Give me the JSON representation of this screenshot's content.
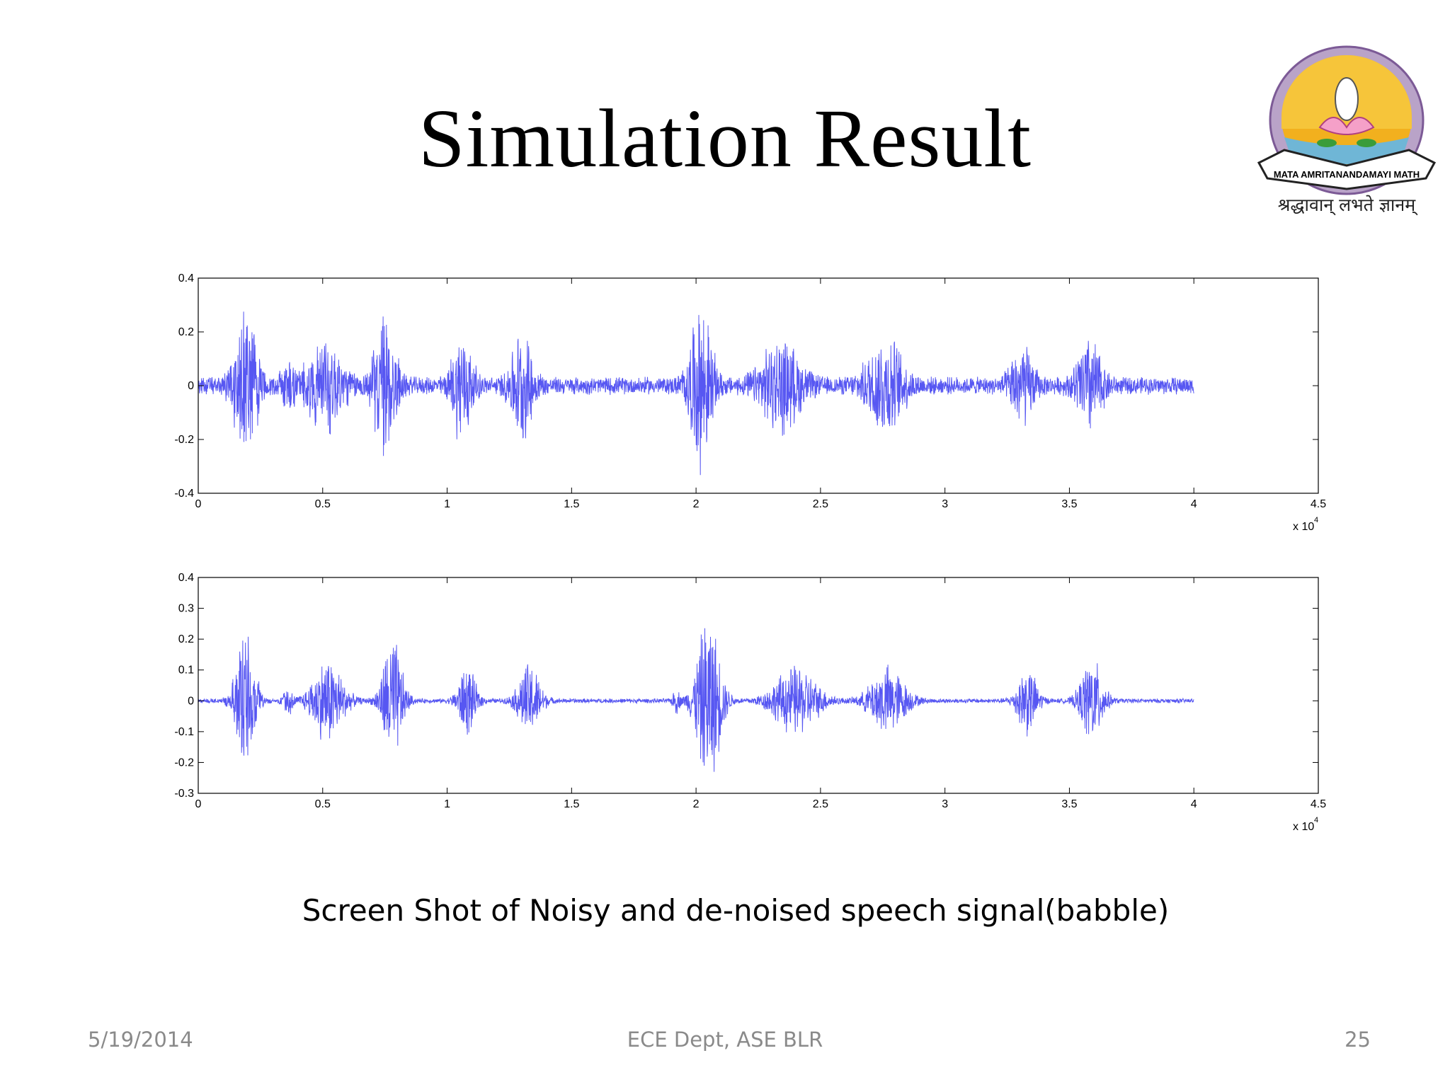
{
  "slide": {
    "title": "Simulation Result",
    "caption": "Screen Shot of Noisy and de-noised speech signal(babble)",
    "footer_left": "5/19/2014",
    "footer_center": "ECE Dept, ASE BLR",
    "footer_right": "25"
  },
  "logo": {
    "banner_text": "MATA AMRITANANDAMAYI MATH",
    "motto": "श्रद्धावान् लभते ज्ञानम्"
  },
  "colors": {
    "signal": "#3a3af0",
    "axis": "#000000",
    "footer": "#8a8a8a"
  },
  "chart_data": [
    {
      "type": "line",
      "title": "",
      "xlabel": "",
      "ylabel": "",
      "x_multiplier_label": "x 10",
      "x_multiplier_exponent": "4",
      "xlim": [
        0,
        45000
      ],
      "ylim": [
        -0.4,
        0.4
      ],
      "xticks": [
        0,
        0.5,
        1,
        1.5,
        2,
        2.5,
        3,
        3.5,
        4,
        4.5
      ],
      "yticks": [
        0.4,
        0.2,
        0,
        -0.2,
        -0.4
      ],
      "grid": false,
      "series": [
        {
          "x_end": 40000,
          "noise_floor": 0.035,
          "envelope": [
            {
              "center": 1900,
              "width": 500,
              "amp": 0.33
            },
            {
              "center": 3600,
              "width": 300,
              "amp": 0.1
            },
            {
              "center": 5100,
              "width": 800,
              "amp": 0.18
            },
            {
              "center": 7500,
              "width": 500,
              "amp": 0.27
            },
            {
              "center": 10600,
              "width": 450,
              "amp": 0.21
            },
            {
              "center": 13000,
              "width": 500,
              "amp": 0.2
            },
            {
              "center": 20200,
              "width": 500,
              "amp": 0.31
            },
            {
              "center": 23400,
              "width": 900,
              "amp": 0.17
            },
            {
              "center": 27600,
              "width": 800,
              "amp": 0.19
            },
            {
              "center": 33100,
              "width": 500,
              "amp": 0.15
            },
            {
              "center": 35800,
              "width": 550,
              "amp": 0.18
            }
          ]
        }
      ]
    },
    {
      "type": "line",
      "title": "",
      "xlabel": "",
      "ylabel": "",
      "x_multiplier_label": "x 10",
      "x_multiplier_exponent": "4",
      "xlim": [
        0,
        45000
      ],
      "ylim": [
        -0.3,
        0.4
      ],
      "xticks": [
        0,
        0.5,
        1,
        1.5,
        2,
        2.5,
        3,
        3.5,
        4,
        4.5
      ],
      "yticks": [
        0.4,
        0.3,
        0.2,
        0.1,
        0,
        -0.1,
        -0.2,
        -0.3
      ],
      "grid": false,
      "series": [
        {
          "x_end": 40000,
          "noise_floor": 0.008,
          "envelope": [
            {
              "center": 1900,
              "width": 450,
              "amp": 0.25
            },
            {
              "center": 3600,
              "width": 200,
              "amp": 0.05
            },
            {
              "center": 5200,
              "width": 700,
              "amp": 0.15
            },
            {
              "center": 7800,
              "width": 450,
              "amp": 0.23
            },
            {
              "center": 10800,
              "width": 400,
              "amp": 0.12
            },
            {
              "center": 13300,
              "width": 500,
              "amp": 0.13
            },
            {
              "center": 19200,
              "width": 150,
              "amp": 0.04
            },
            {
              "center": 20500,
              "width": 550,
              "amp": 0.3
            },
            {
              "center": 24000,
              "width": 1000,
              "amp": 0.12
            },
            {
              "center": 27700,
              "width": 800,
              "amp": 0.12
            },
            {
              "center": 33300,
              "width": 450,
              "amp": 0.12
            },
            {
              "center": 35900,
              "width": 500,
              "amp": 0.15
            }
          ]
        }
      ]
    }
  ]
}
